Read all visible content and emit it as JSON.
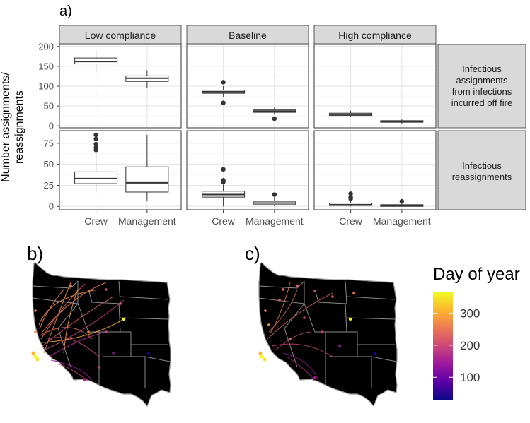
{
  "chart_data": {
    "type": "boxplot-grid",
    "panel_a": {
      "label": "a)",
      "ylabel_lines": [
        "Number assignments/",
        "reassignments"
      ],
      "columns": [
        "Low compliance",
        "Baseline",
        "High compliance"
      ],
      "rows": [
        {
          "strip_lines": [
            "Infectious",
            "assignments",
            "from infections",
            "incurred off fire"
          ],
          "ylim": [
            -5,
            205
          ],
          "yticks": [
            0,
            50,
            100,
            150,
            200
          ]
        },
        {
          "strip_lines": [
            "Infectious",
            "reassignments"
          ],
          "ylim": [
            -4,
            90
          ],
          "yticks": [
            0,
            25,
            50,
            75
          ]
        }
      ],
      "categories": [
        "Crew",
        "Management"
      ],
      "boxes": [
        [
          [
            {
              "category": "Crew",
              "min": 137,
              "q1": 156,
              "median": 162,
              "q3": 171,
              "max": 190,
              "outliers": []
            },
            {
              "category": "Management",
              "min": 95,
              "q1": 112,
              "median": 120,
              "q3": 126,
              "max": 140,
              "outliers": []
            }
          ],
          [
            {
              "category": "Crew",
              "min": 72,
              "q1": 82,
              "median": 86,
              "q3": 90,
              "max": 100,
              "outliers": [
                110,
                58
              ]
            },
            {
              "category": "Management",
              "min": 28,
              "q1": 34,
              "median": 37,
              "q3": 40,
              "max": 46,
              "outliers": [
                18
              ]
            }
          ],
          [
            {
              "category": "Crew",
              "min": 22,
              "q1": 26,
              "median": 29,
              "q3": 32,
              "max": 38,
              "outliers": []
            },
            {
              "category": "Management",
              "min": 6,
              "q1": 9,
              "median": 11,
              "q3": 13,
              "max": 16,
              "outliers": []
            }
          ]
        ],
        [
          [
            {
              "category": "Crew",
              "min": 17,
              "q1": 27,
              "median": 33,
              "q3": 41,
              "max": 62,
              "outliers": [
                67,
                70,
                74,
                80,
                85
              ]
            },
            {
              "category": "Management",
              "min": 7,
              "q1": 17,
              "median": 28,
              "q3": 47,
              "max": 85,
              "outliers": []
            }
          ],
          [
            {
              "category": "Crew",
              "min": 0,
              "q1": 11,
              "median": 14,
              "q3": 18,
              "max": 26,
              "outliers": [
                29,
                31,
                44
              ]
            },
            {
              "category": "Management",
              "min": 0,
              "q1": 2,
              "median": 4,
              "q3": 6,
              "max": 11,
              "outliers": [
                14
              ]
            }
          ],
          [
            {
              "category": "Crew",
              "min": 0,
              "q1": 1,
              "median": 2,
              "q3": 4,
              "max": 6,
              "outliers": [
                9,
                11,
                15
              ]
            },
            {
              "category": "Management",
              "min": 0,
              "q1": 0,
              "median": 1,
              "q3": 2,
              "max": 4,
              "outliers": [
                6
              ]
            }
          ]
        ]
      ]
    },
    "map_panels": [
      {
        "label": "b)",
        "description": "Western US states with movement paths colored by day of year"
      },
      {
        "label": "c)",
        "description": "Western US states with movement paths colored by day of year"
      }
    ],
    "legend": {
      "title": "Day of year",
      "ticks": [
        100,
        200,
        300
      ],
      "range": [
        30,
        365
      ],
      "colors": [
        "#0d0887",
        "#5c01a6",
        "#9c179e",
        "#cc4778",
        "#ed7953",
        "#fdb42f",
        "#f0f921"
      ]
    }
  }
}
